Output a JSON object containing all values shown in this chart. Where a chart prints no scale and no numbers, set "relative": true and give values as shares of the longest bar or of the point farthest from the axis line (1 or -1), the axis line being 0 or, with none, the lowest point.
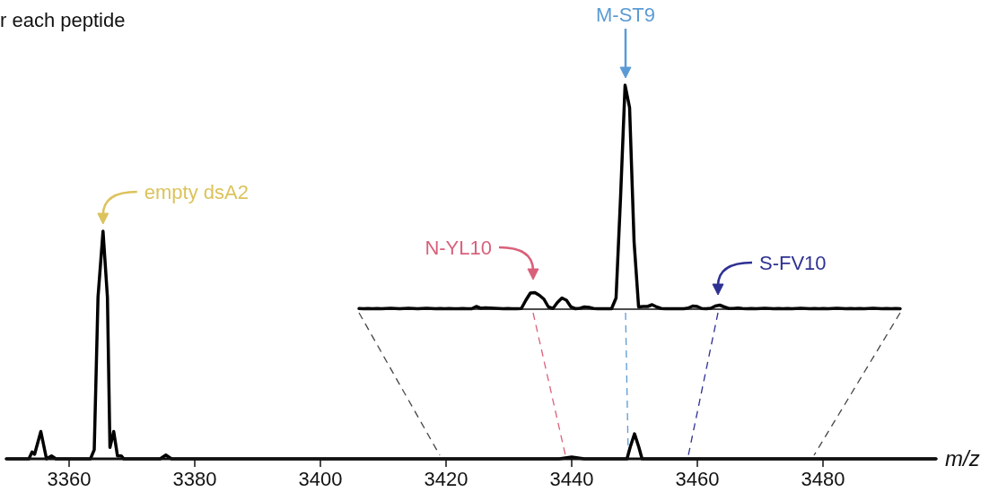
{
  "chart_data": [
    {
      "type": "line",
      "title": "r each peptide",
      "xlabel": "m/z",
      "relative": true,
      "xlim": [
        3350,
        3498
      ],
      "xticks": [
        3360,
        3380,
        3400,
        3420,
        3440,
        3460,
        3480
      ],
      "series": [
        {
          "color": "#000000",
          "x": [
            3350,
            3353.6,
            3354.1,
            3354.5,
            3355.5,
            3356.4,
            3357.2,
            3357.9,
            3363.4,
            3364.0,
            3364.6,
            3365.4,
            3366.1,
            3366.5,
            3367.1,
            3367.7,
            3368.3,
            3368.7,
            3374.5,
            3375.4,
            3376.3,
            3438,
            3440,
            3442,
            3448.8,
            3449.3,
            3450,
            3450.7,
            3451.2,
            3498
          ],
          "values": [
            0,
            0,
            0.03,
            0.02,
            0.12,
            0,
            0.013,
            0,
            0,
            0.04,
            0.71,
            1,
            0.71,
            0.05,
            0.12,
            0.013,
            0.013,
            0,
            0,
            0.017,
            0,
            0,
            0.008,
            0,
            0,
            0.05,
            0.11,
            0.05,
            0,
            0
          ]
        }
      ],
      "annotations": [
        {
          "text": "empty dsA2",
          "x": 3365.4,
          "y": 1
        }
      ]
    },
    {
      "type": "line",
      "relative": true,
      "categories": [
        null,
        null,
        null,
        null,
        null,
        null,
        null,
        null,
        null,
        null,
        null,
        null,
        null,
        null,
        null,
        null,
        null,
        null,
        null,
        null,
        null,
        null,
        null,
        null,
        null,
        null,
        null,
        null,
        null,
        null,
        null,
        null,
        null,
        null,
        null,
        null,
        null,
        null,
        null,
        null,
        null,
        null,
        null,
        null,
        null,
        null,
        null,
        null,
        null,
        null,
        null,
        null,
        null,
        null,
        null,
        null,
        null,
        null,
        null,
        null,
        null,
        null,
        null,
        null,
        null,
        null,
        null,
        null,
        null,
        null,
        null,
        null,
        null,
        null,
        null,
        null,
        null,
        null,
        null,
        null,
        null,
        null,
        null,
        null,
        null,
        null,
        null,
        null,
        null,
        null,
        null,
        null,
        null,
        null,
        null,
        null,
        null,
        null,
        null,
        null,
        null,
        null,
        null,
        null,
        null,
        null,
        null,
        null,
        null,
        null,
        null,
        null,
        null,
        null,
        null,
        null,
        null,
        null,
        null,
        null,
        null
      ],
      "series": [
        {
          "color": "#000000",
          "values": [
            0.003,
            0.002,
            0.003,
            0.002,
            0.003,
            0.002,
            0.003,
            0.004,
            0.003,
            0.002,
            0.003,
            0.004,
            0.003,
            0.002,
            0.003,
            0.004,
            0.003,
            0.002,
            0.003,
            0.002,
            0.003,
            0.002,
            0.002,
            0.003,
            0.002,
            0.002,
            0.012,
            0.004,
            0.006,
            0.005,
            0.004,
            0.003,
            0.002,
            0.003,
            0.002,
            0.002,
            0.003,
            0.04,
            0.072,
            0.074,
            0.062,
            0.045,
            0.01,
            0.003,
            0.03,
            0.05,
            0.04,
            0.01,
            0.002,
            0.004,
            0.01,
            0.008,
            0.003,
            0.002,
            0.002,
            0.002,
            0.002,
            0.05,
            0.5,
            1,
            0.9,
            0.3,
            0.01,
            0.012,
            0.012,
            0.02,
            0.01,
            0.003,
            0.002,
            0.002,
            0.002,
            0.002,
            0.002,
            0.005,
            0.014,
            0.012,
            0.003,
            0.002,
            0.004,
            0.014,
            0.018,
            0.01,
            0.003,
            0.003,
            0.005,
            0.003,
            0.002,
            0.003,
            0.002,
            0.003,
            0.004,
            0.003,
            0.002,
            0.003,
            0.002,
            0.003,
            0.002,
            0.003,
            0.004,
            0.003,
            0.002,
            0.003,
            0.002,
            0.003,
            0.002,
            0.003,
            0.004,
            0.003,
            0.002,
            0.003,
            0.002,
            0.003,
            0.002,
            0.003,
            0.004,
            0.003,
            0.002,
            0.003,
            0.002,
            0.003,
            0.002
          ]
        }
      ],
      "annotations": [
        "M-ST9",
        "N-YL10",
        "S-FV10"
      ]
    }
  ]
}
